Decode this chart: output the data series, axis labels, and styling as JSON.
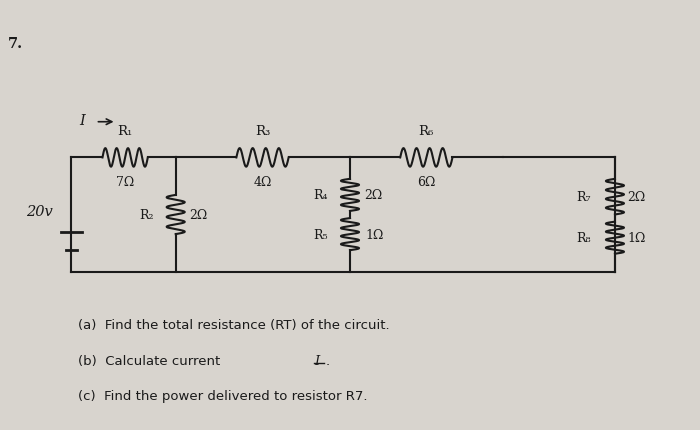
{
  "bg_color": "#d8d4ce",
  "fig_width": 7.0,
  "fig_height": 4.31,
  "problem_number": "7.",
  "voltage": "20v",
  "current_label": "I",
  "r1_label": "R₁",
  "r1_val": "7Ω",
  "r2_label": "R₂",
  "r2_val": "2Ω",
  "r3_label": "R₃",
  "r3_val": "4Ω",
  "r4_label": "R₄",
  "r4_val": "2Ω",
  "r5_label": "R₅",
  "r5_val": "1Ω",
  "r6_label": "R₆",
  "r6_val": "6Ω",
  "r7_label": "R₇",
  "r7_val": "2Ω",
  "r8_label": "R₈",
  "r8_val": "1Ω",
  "q_a": "(a)  Find the total resistance (RT) of the circuit.",
  "q_b": "(b)  Calculate current I̲.",
  "q_c": "(c)  Find the power delivered to resistor R7.",
  "text_color": "#1a1a1a"
}
